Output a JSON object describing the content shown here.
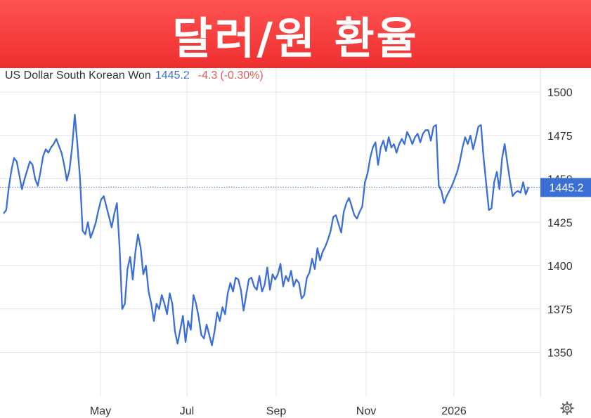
{
  "banner": {
    "title": "달러/원 환율"
  },
  "header": {
    "instrument": "US Dollar South Korean Won",
    "price": "1445.2",
    "change": "-4.3",
    "change_pct": "(-0.30%)"
  },
  "colors": {
    "line": "#3b6fd6",
    "banner": "#ee2f2f",
    "negative": "#e05a5a"
  },
  "icons": {
    "settings": "gear-icon"
  },
  "chart_data": {
    "type": "line",
    "title": "",
    "xlabel": "",
    "ylabel": "",
    "ylim": [
      1325,
      1510
    ],
    "yticks": [
      1350,
      1375,
      1400,
      1425,
      1450,
      1475,
      1500
    ],
    "xticks": [
      "May",
      "Jul",
      "Sep",
      "Nov",
      "2026"
    ],
    "last_value": "1445.2",
    "grid": true,
    "series": [
      {
        "values": [
          1430,
          1432,
          1445,
          1455,
          1462,
          1460,
          1452,
          1444,
          1450,
          1455,
          1460,
          1458,
          1450,
          1446,
          1454,
          1463,
          1467,
          1465,
          1468,
          1470,
          1473,
          1469,
          1465,
          1458,
          1449,
          1455,
          1468,
          1487,
          1470,
          1450,
          1420,
          1418,
          1425,
          1416,
          1420,
          1425,
          1432,
          1438,
          1440,
          1434,
          1428,
          1422,
          1430,
          1436,
          1410,
          1375,
          1378,
          1398,
          1405,
          1392,
          1408,
          1418,
          1410,
          1395,
          1400,
          1385,
          1378,
          1368,
          1378,
          1375,
          1383,
          1378,
          1372,
          1384,
          1378,
          1362,
          1355,
          1363,
          1371,
          1356,
          1368,
          1363,
          1383,
          1378,
          1370,
          1360,
          1358,
          1366,
          1360,
          1354,
          1362,
          1373,
          1368,
          1376,
          1372,
          1384,
          1390,
          1385,
          1393,
          1392,
          1386,
          1374,
          1383,
          1392,
          1393,
          1388,
          1386,
          1394,
          1385,
          1389,
          1399,
          1386,
          1395,
          1392,
          1395,
          1401,
          1388,
          1394,
          1391,
          1397,
          1388,
          1392,
          1390,
          1381,
          1383,
          1393,
          1396,
          1404,
          1398,
          1410,
          1403,
          1408,
          1411,
          1415,
          1420,
          1428,
          1429,
          1424,
          1419,
          1431,
          1436,
          1439,
          1434,
          1429,
          1427,
          1431,
          1434,
          1448,
          1453,
          1462,
          1468,
          1471,
          1458,
          1468,
          1472,
          1466,
          1474,
          1468,
          1470,
          1465,
          1470,
          1473,
          1470,
          1477,
          1474,
          1470,
          1474,
          1476,
          1471,
          1476,
          1478,
          1478,
          1472,
          1480,
          1481,
          1446,
          1443,
          1436,
          1440,
          1443,
          1446,
          1450,
          1454,
          1460,
          1468,
          1474,
          1470,
          1475,
          1467,
          1473,
          1480,
          1481,
          1462,
          1447,
          1432,
          1433,
          1448,
          1454,
          1444,
          1462,
          1470,
          1459,
          1449,
          1440,
          1442,
          1443,
          1442,
          1448,
          1441,
          1445.2
        ]
      }
    ]
  }
}
